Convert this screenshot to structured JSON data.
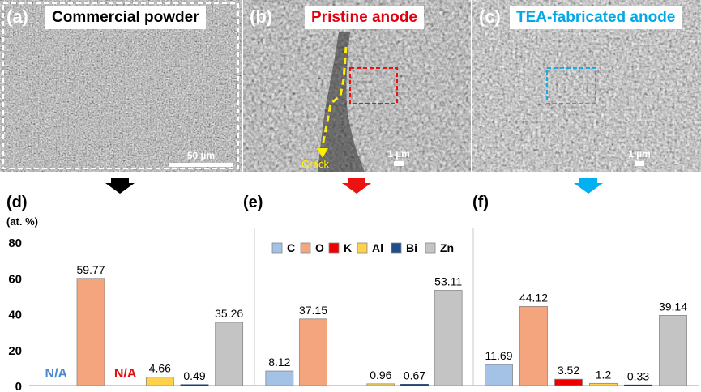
{
  "panels": {
    "a": {
      "letter": "(a)",
      "title": "Commercial powder",
      "title_color": "#000000",
      "scale_bar": "50 µm"
    },
    "b": {
      "letter": "(b)",
      "title": "Pristine anode",
      "title_color": "#e0000f",
      "scale_bar": "1 µm",
      "crack_label": "Crack"
    },
    "c": {
      "letter": "(c)",
      "title": "TEA-fabricated anode",
      "title_color": "#00a8e8",
      "scale_bar": "1 µm"
    }
  },
  "arrows": {
    "colors": [
      "#000000",
      "#ee1111",
      "#00b0f0"
    ]
  },
  "chart_data": {
    "type": "bar",
    "ylabel": "(at. %)",
    "ylim": [
      0,
      80
    ],
    "yticks": [
      0,
      20,
      40,
      60,
      80
    ],
    "categories": [
      "C",
      "O",
      "K",
      "Al",
      "Bi",
      "Zn"
    ],
    "colors": {
      "C": "#a4c2e6",
      "O": "#f4a57d",
      "K": "#ee0000",
      "Al": "#ffd24a",
      "Bi": "#1f4e8c",
      "Zn": "#c4c4c4"
    },
    "legend": [
      "C",
      "O",
      "K",
      "Al",
      "Bi",
      "Zn"
    ],
    "groups": [
      {
        "label": "(d)",
        "values": {
          "C": null,
          "O": 59.77,
          "K": null,
          "Al": 4.66,
          "Bi": 0.49,
          "Zn": 35.26
        },
        "na": {
          "C": "N/A",
          "K": "N/A"
        }
      },
      {
        "label": "(e)",
        "values": {
          "C": 8.12,
          "O": 37.15,
          "K": null,
          "Al": 0.96,
          "Bi": 0.67,
          "Zn": 53.11
        }
      },
      {
        "label": "(f)",
        "values": {
          "C": 11.69,
          "O": 44.12,
          "K": 3.52,
          "Al": 1.2,
          "Bi": 0.33,
          "Zn": 39.14
        }
      }
    ]
  }
}
